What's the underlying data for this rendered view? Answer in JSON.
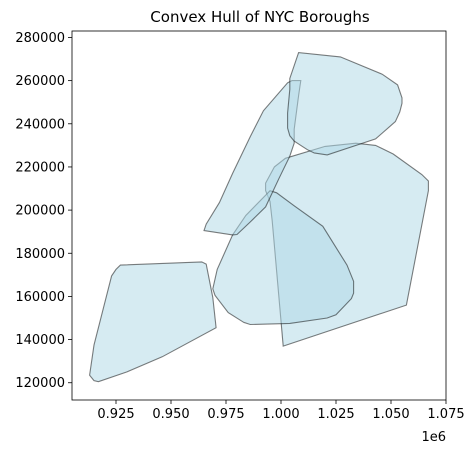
{
  "chart_data": {
    "type": "area",
    "title": "Convex Hull of NYC Boroughs",
    "xlabel": "",
    "ylabel": "",
    "x_offset_label": "1e6",
    "xlim": [
      0.905,
      1.075
    ],
    "ylim": [
      112000,
      283000
    ],
    "x_ticks": [
      0.925,
      0.95,
      0.975,
      1.0,
      1.025,
      1.05,
      1.075
    ],
    "x_tick_labels": [
      "0.925",
      "0.950",
      "0.975",
      "1.000",
      "1.025",
      "1.050",
      "1.075"
    ],
    "y_ticks": [
      120000,
      140000,
      160000,
      180000,
      200000,
      220000,
      240000,
      260000,
      280000
    ],
    "y_tick_labels": [
      "120000",
      "140000",
      "160000",
      "180000",
      "200000",
      "220000",
      "240000",
      "260000",
      "280000"
    ],
    "grid": false,
    "legend": "none",
    "fill_color": "#add8e6",
    "fill_opacity": 0.5,
    "edge_color": "#000000",
    "edge_opacity": 0.5,
    "series": [
      {
        "points": [
          [
            0.915,
            121000
          ],
          [
            0.913,
            123500
          ],
          [
            0.915,
            137500
          ],
          [
            0.923,
            169500
          ],
          [
            0.925,
            172500
          ],
          [
            0.927,
            174500
          ],
          [
            0.964,
            176000
          ],
          [
            0.966,
            175000
          ],
          [
            0.969,
            159500
          ],
          [
            0.9705,
            145500
          ],
          [
            0.946,
            132000
          ],
          [
            0.93,
            125000
          ],
          [
            0.917,
            120500
          ]
        ]
      },
      {
        "points": [
          [
            1.001,
            137000
          ],
          [
            1.057,
            156000
          ],
          [
            1.067,
            209000
          ],
          [
            1.067,
            213500
          ],
          [
            1.064,
            216500
          ],
          [
            1.051,
            226000
          ],
          [
            1.043,
            230000
          ],
          [
            1.034,
            231000
          ],
          [
            1.02,
            229500
          ],
          [
            1.002,
            224000
          ],
          [
            0.997,
            220000
          ],
          [
            0.993,
            212500
          ],
          [
            0.993,
            209000
          ],
          [
            0.995,
            204000
          ],
          [
            0.996,
            195000
          ]
        ]
      },
      {
        "points": [
          [
            0.983,
            148000
          ],
          [
            0.986,
            147000
          ],
          [
            1.004,
            147500
          ],
          [
            1.021,
            150000
          ],
          [
            1.025,
            151500
          ],
          [
            1.032,
            159000
          ],
          [
            1.033,
            161500
          ],
          [
            1.033,
            167000
          ],
          [
            1.03,
            174500
          ],
          [
            1.019,
            192500
          ],
          [
            1.006,
            202000
          ],
          [
            0.998,
            208000
          ],
          [
            0.995,
            209000
          ],
          [
            0.984,
            197500
          ],
          [
            0.978,
            188500
          ],
          [
            0.971,
            172500
          ],
          [
            0.969,
            163500
          ],
          [
            0.97,
            160500
          ],
          [
            0.976,
            152500
          ]
        ]
      },
      {
        "points": [
          [
            0.965,
            190500
          ],
          [
            0.978,
            188500
          ],
          [
            0.98,
            188700
          ],
          [
            0.986,
            194500
          ],
          [
            0.993,
            201500
          ],
          [
            0.999,
            214500
          ],
          [
            1.004,
            225000
          ],
          [
            1.006,
            231000
          ],
          [
            1.006,
            237500
          ],
          [
            1.008,
            253000
          ],
          [
            1.009,
            260000
          ],
          [
            1.008,
            260000
          ],
          [
            1.005,
            260000
          ],
          [
            1.003,
            259000
          ],
          [
            0.992,
            246000
          ],
          [
            0.986,
            234000
          ],
          [
            0.978,
            217000
          ],
          [
            0.972,
            203500
          ],
          [
            0.966,
            193500
          ]
        ]
      },
      {
        "points": [
          [
            1.015,
            226500
          ],
          [
            1.021,
            225600
          ],
          [
            1.043,
            233000
          ],
          [
            1.052,
            241000
          ],
          [
            1.054,
            245500
          ],
          [
            1.055,
            249500
          ],
          [
            1.055,
            252000
          ],
          [
            1.053,
            258000
          ],
          [
            1.046,
            263000
          ],
          [
            1.027,
            271000
          ],
          [
            1.008,
            273000
          ],
          [
            1.004,
            261000
          ],
          [
            1.004,
            256000
          ],
          [
            1.003,
            245000
          ],
          [
            1.003,
            238000
          ],
          [
            1.004,
            234500
          ],
          [
            1.006,
            232000
          ],
          [
            1.009,
            230000
          ],
          [
            1.012,
            228000
          ]
        ]
      }
    ]
  }
}
